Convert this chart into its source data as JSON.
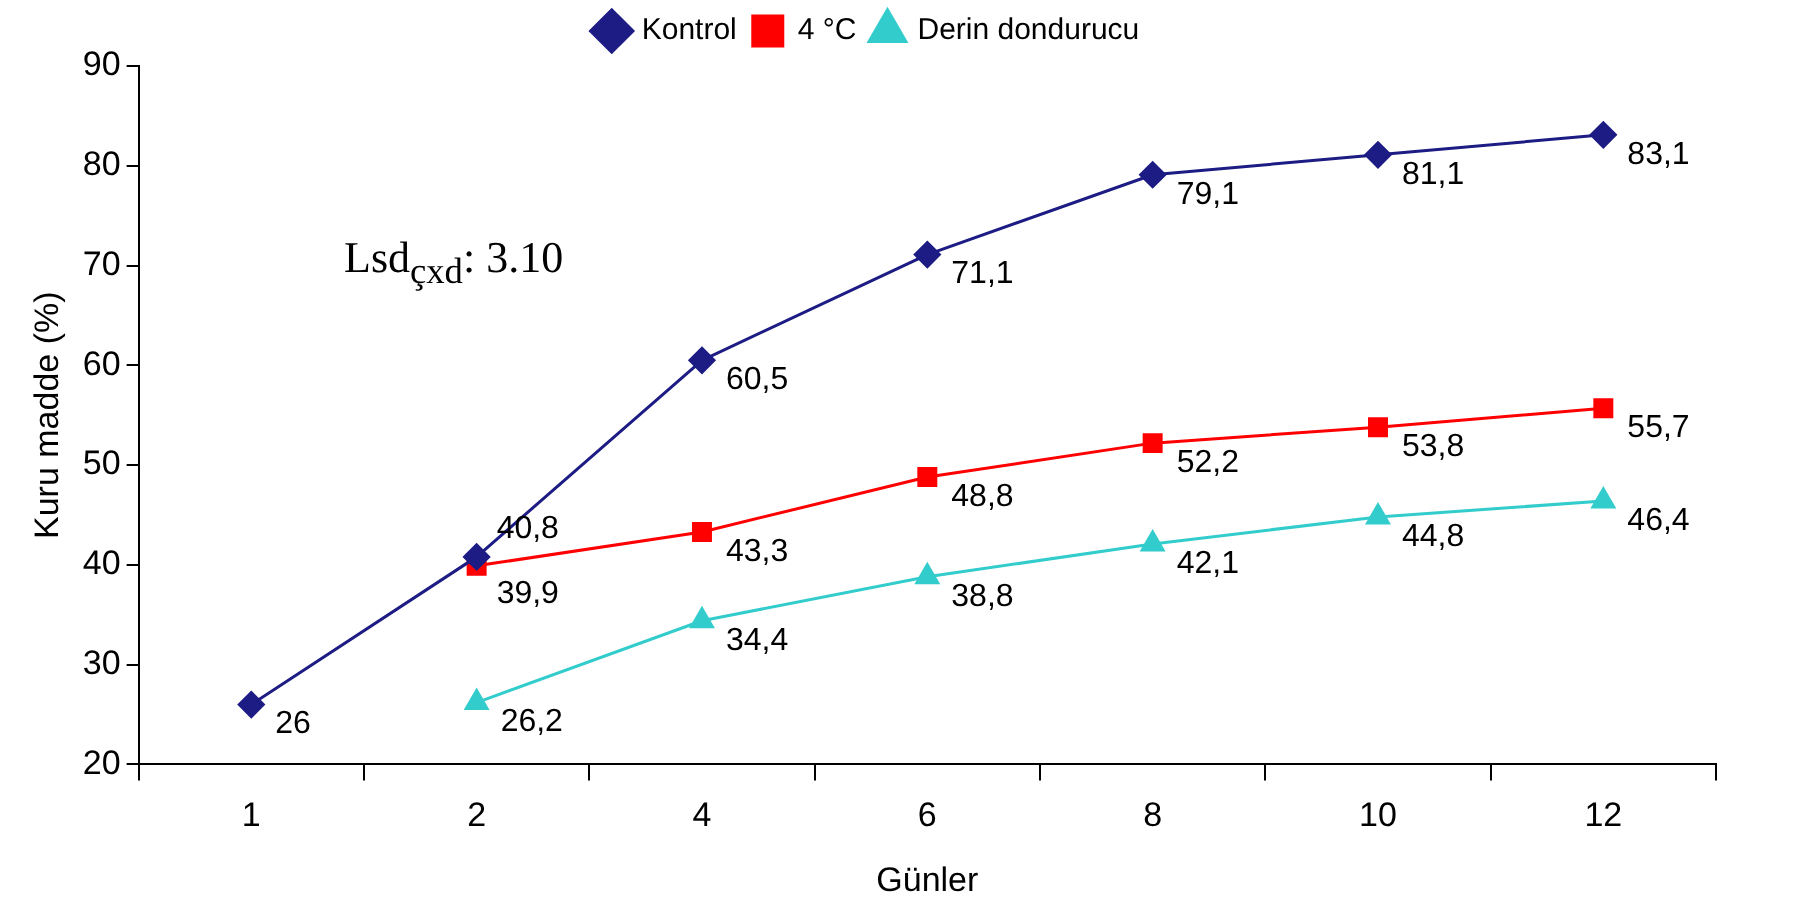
{
  "chart_data": {
    "type": "line",
    "xlabel": "Günler",
    "ylabel": "Kuru madde (%)",
    "categories": [
      "1",
      "2",
      "4",
      "6",
      "8",
      "10",
      "12"
    ],
    "series": [
      {
        "name": "Kontrol",
        "color": "#1c1c84",
        "marker": "diamond",
        "values": [
          26,
          40.8,
          60.5,
          71.1,
          79.1,
          81.1,
          83.1
        ],
        "value_labels": [
          "26",
          "40,8",
          "60,5",
          "71,1",
          "79,1",
          "81,1",
          "83,1"
        ]
      },
      {
        "name": "4 °C",
        "color": "#ff0000",
        "marker": "square",
        "values": [
          null,
          39.9,
          43.3,
          48.8,
          52.2,
          53.8,
          55.7
        ],
        "value_labels": [
          null,
          "39,9",
          "43,3",
          "48,8",
          "52,2",
          "53,8",
          "55,7"
        ]
      },
      {
        "name": "Derin dondurucu",
        "color": "#33cccc",
        "marker": "triangle",
        "values": [
          null,
          26.2,
          34.4,
          38.8,
          42.1,
          44.8,
          46.4
        ],
        "value_labels": [
          null,
          "26,2",
          "34,4",
          "38,8",
          "42,1",
          "44,8",
          "46,4"
        ]
      }
    ],
    "ylim": [
      20,
      90
    ],
    "yticks": [
      20,
      30,
      40,
      50,
      60,
      70,
      80,
      90
    ],
    "grid": false,
    "legend": "top",
    "annotations": [
      "Lsd$_{çxd}$: 3.10"
    ]
  }
}
